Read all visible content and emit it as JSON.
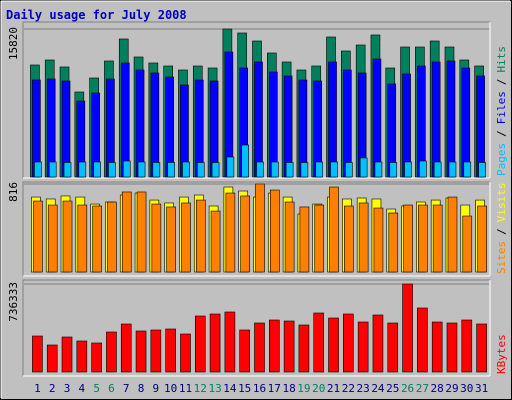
{
  "chart_data": {
    "type": "bar",
    "title": "Daily usage for July 2008",
    "categories": [
      "1",
      "2",
      "3",
      "4",
      "5",
      "6",
      "7",
      "8",
      "9",
      "10",
      "11",
      "12",
      "13",
      "14",
      "15",
      "16",
      "17",
      "18",
      "19",
      "20",
      "21",
      "22",
      "23",
      "24",
      "25",
      "26",
      "27",
      "28",
      "29",
      "30",
      "31"
    ],
    "highlighted_categories": [
      "5",
      "6",
      "12",
      "13",
      "19",
      "20",
      "26",
      "27"
    ],
    "highlight_color": "#008060",
    "label_color": "#000080",
    "legend_separator": "/",
    "panels": [
      {
        "ylim": [
          0,
          15820
        ],
        "yticks": [
          15820
        ],
        "series": [
          {
            "name": "Hits",
            "color": "#00805c",
            "values": [
              11973,
              12507,
              11759,
              9087,
              10583,
              12400,
              14752,
              12828,
              12187,
              11866,
              11438,
              11866,
              11652,
              15820,
              15394,
              14538,
              13256,
              12294,
              11438,
              11866,
              14966,
              13469,
              14111,
              15180,
              11652,
              13897,
              13897,
              14538,
              13897,
              12507,
              11866
            ]
          },
          {
            "name": "Files",
            "color": "#0000ff",
            "values": [
              10369,
              10476,
              10262,
              8124,
              8980,
              10476,
              12187,
              11438,
              11118,
              10690,
              9835,
              10369,
              10262,
              13363,
              11652,
              12294,
              11225,
              10797,
              10369,
              10262,
              12294,
              11438,
              11118,
              12614,
              9942,
              11011,
              11866,
              12294,
              12400,
              11652,
              10797
            ]
          },
          {
            "name": "Pages",
            "color": "#00c0ff",
            "values": [
              1604,
              1604,
              1550,
              1604,
              1604,
              1550,
              1710,
              1604,
              1550,
              1550,
              1604,
              1550,
              1550,
              2138,
              3421,
              1604,
              1604,
              1550,
              1550,
              1604,
              1604,
              1550,
              2031,
              1604,
              1550,
              1604,
              1710,
              1604,
              1604,
              1604,
              1550
            ]
          }
        ]
      },
      {
        "ylim": [
          0,
          816
        ],
        "yticks": [
          816
        ],
        "series": [
          {
            "name": "Visits",
            "color": "#ffff00",
            "values": [
              695,
              677,
              705,
              695,
              630,
              649,
              714,
              732,
              667,
              640,
              695,
              714,
              612,
              788,
              751,
              695,
              732,
              695,
              538,
              630,
              695,
              677,
              686,
              677,
              584,
              612,
              649,
              667,
              686,
              621,
              667
            ]
          },
          {
            "name": "Sites",
            "color": "#ff8000",
            "values": [
              658,
              621,
              658,
              621,
              612,
              649,
              742,
              742,
              630,
              603,
              640,
              667,
              565,
              732,
              705,
              816,
              760,
              649,
              603,
              621,
              788,
              612,
              640,
              593,
              547,
              621,
              621,
              621,
              695,
              519,
              612
            ]
          }
        ]
      },
      {
        "ylim": [
          0,
          736333
        ],
        "yticks": [
          736333
        ],
        "series": [
          {
            "name": "KBytes",
            "color": "#ff0000",
            "values": [
              301212,
              225909,
              292845,
              259377,
              242643,
              334680,
              401616,
              343047,
              351414,
              359781,
              317946,
              468552,
              485286,
              502020,
              351414,
              409983,
              435084,
              426717,
              393249,
              493653,
              451818,
              485286,
              418350,
              476919,
              409983,
              736333,
              535488,
              418350,
              409983,
              435084,
              401616
            ]
          }
        ]
      }
    ]
  }
}
